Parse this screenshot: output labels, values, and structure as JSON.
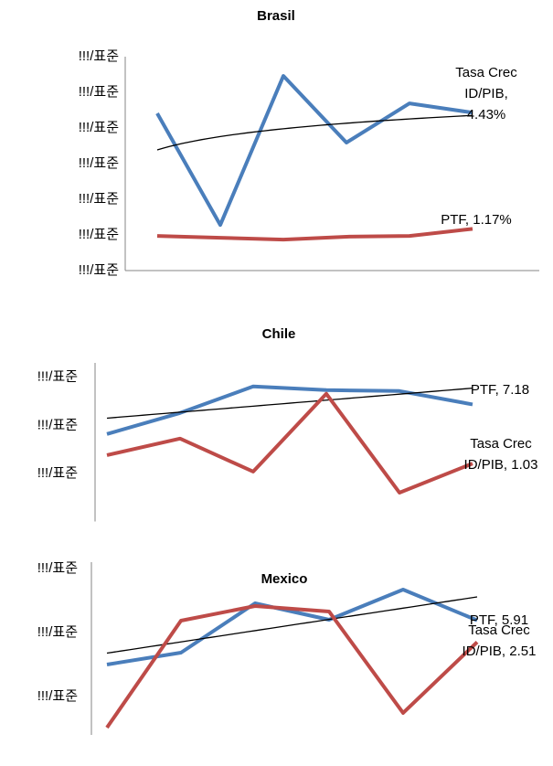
{
  "chart_data": [
    {
      "type": "line",
      "title": "Brasil",
      "categories": [
        null,
        null,
        null,
        null,
        null,
        null
      ],
      "ylim": [
        0,
        6
      ],
      "yticks": [
        {
          "value": 0,
          "label": "!!!/표준"
        },
        {
          "value": 1,
          "label": "!!!/표준"
        },
        {
          "value": 2,
          "label": "!!!/표준"
        },
        {
          "value": 3,
          "label": "!!!/표준"
        },
        {
          "value": 4,
          "label": "!!!/표준"
        },
        {
          "value": 5,
          "label": "!!!/표준"
        },
        {
          "value": 6,
          "label": "!!!/표준"
        }
      ],
      "series": [
        {
          "name": "Tasa Crec ID/PIB",
          "color": "#4a7ebb",
          "values": [
            4.41,
            1.28,
            5.46,
            3.59,
            4.69,
            4.43
          ],
          "value_labels": [
            null,
            null,
            null,
            null,
            null,
            ", 4.43%"
          ],
          "trendline": "log"
        },
        {
          "name": "PTF",
          "color": "#be4b48",
          "values": [
            0.97,
            0.92,
            0.87,
            0.95,
            0.97,
            1.17
          ],
          "value_labels": [
            null,
            null,
            null,
            null,
            null,
            ", 1.17%"
          ]
        }
      ]
    },
    {
      "type": "line",
      "title": "Chile",
      "categories": [
        null,
        null,
        null,
        null,
        null,
        null
      ],
      "ylim": [
        -5,
        11.5
      ],
      "yticks": [
        {
          "value": 0,
          "label": "!!!/표준"
        },
        {
          "value": 5,
          "label": "!!!/표준"
        },
        {
          "value": 10,
          "label": "!!!/표준"
        }
      ],
      "series": [
        {
          "name": "PTF",
          "color": "#4a7ebb",
          "values": [
            4.1,
            6.29,
            9.05,
            8.67,
            8.57,
            7.18
          ],
          "value_labels": [
            null,
            null,
            null,
            null,
            null,
            ", 7.18"
          ],
          "trendline": "linear"
        },
        {
          "name": "Tasa Crec ID/PIB",
          "color": "#be4b48",
          "values": [
            1.9,
            3.62,
            0.19,
            8.29,
            -2.0,
            1.03
          ],
          "value_labels": [
            null,
            null,
            null,
            null,
            null,
            ", 1.03"
          ]
        }
      ]
    },
    {
      "type": "line",
      "title": "Mexico",
      "categories": [
        null,
        null,
        null,
        null,
        null,
        null
      ],
      "ylim": [
        -12,
        15
      ],
      "yticks": [
        {
          "value": -6,
          "label": "!!!/표준"
        },
        {
          "value": 4,
          "label": "!!!/표준"
        },
        {
          "value": 14,
          "label": "!!!/표준"
        }
      ],
      "series": [
        {
          "name": "PTF",
          "color": "#4a7ebb",
          "values": [
            -1.0,
            0.86,
            8.57,
            6.0,
            10.71,
            5.91
          ],
          "value_labels": [
            null,
            null,
            null,
            null,
            null,
            ", 5.91"
          ],
          "trendline": "linear"
        },
        {
          "name": "Tasa Crec ID/PIB",
          "color": "#be4b48",
          "values": [
            -10.86,
            5.86,
            8.14,
            7.29,
            -8.57,
            2.51
          ],
          "value_labels": [
            null,
            null,
            null,
            null,
            null,
            ", 2.51"
          ]
        }
      ]
    }
  ]
}
